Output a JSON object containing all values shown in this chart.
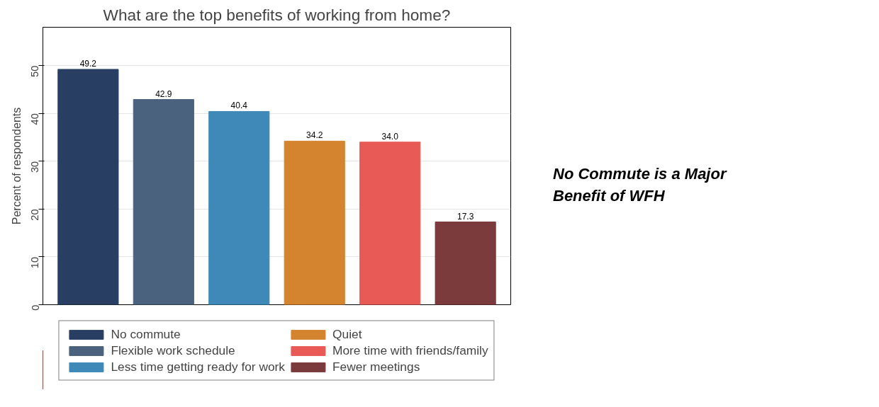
{
  "chart_data": {
    "type": "bar",
    "title": "What are the top benefits of working from home?",
    "ylabel": "Percent of respondents",
    "categories": [
      null,
      null,
      null,
      null,
      null,
      null
    ],
    "series": [
      {
        "name": "No commute",
        "color": "#283f63",
        "values": [
          49.2,
          null,
          null,
          null,
          null,
          null
        ]
      },
      {
        "name": "Flexible work schedule",
        "color": "#4a627e",
        "values": [
          null,
          42.9,
          null,
          null,
          null,
          null
        ]
      },
      {
        "name": "Less time getting ready for work",
        "color": "#3e89b8",
        "values": [
          null,
          null,
          40.4,
          null,
          null,
          null
        ]
      },
      {
        "name": "Quiet",
        "color": "#d4842f",
        "values": [
          null,
          null,
          null,
          34.2,
          null,
          null
        ]
      },
      {
        "name": "More time with friends/family",
        "color": "#e85a56",
        "values": [
          null,
          null,
          null,
          null,
          34.0,
          null
        ]
      },
      {
        "name": "Fewer meetings",
        "color": "#7b3a3c",
        "values": [
          null,
          null,
          null,
          null,
          null,
          17.3
        ]
      }
    ],
    "value_labels": [
      "49.2",
      "42.9",
      "40.4",
      "34.2",
      "34.0",
      "17.3"
    ],
    "ylim": [
      0,
      58
    ],
    "yticks": [
      0,
      10,
      20,
      30,
      40,
      50
    ],
    "grid": "y",
    "legend": "bottom",
    "annotations": [
      "No Commute is a Major Benefit of WFH"
    ]
  }
}
